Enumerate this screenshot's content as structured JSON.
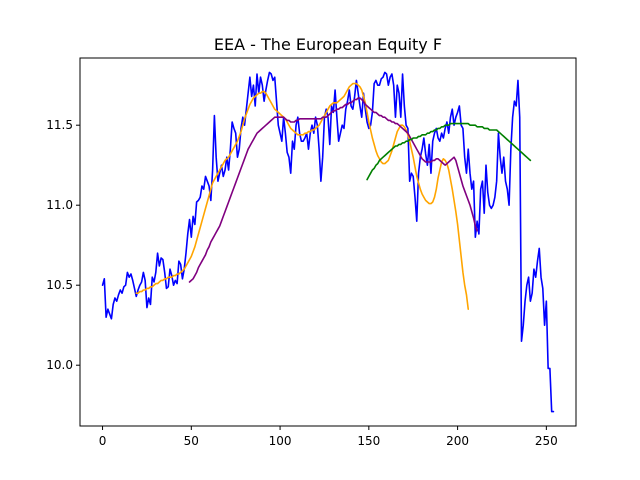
{
  "chart_data": {
    "type": "line",
    "title": "EEA - The European Equity F",
    "xlabel": "",
    "ylabel": "",
    "xlim": [
      -12.7,
      266.7
    ],
    "ylim": [
      9.62,
      11.92
    ],
    "xticks": [
      0,
      50,
      100,
      150,
      200,
      250
    ],
    "yticks": [
      10.0,
      10.5,
      11.0,
      11.5
    ],
    "ytick_labels": [
      "10.0",
      "10.5",
      "11.0",
      "11.5"
    ],
    "grid": false,
    "series": [
      {
        "color": "#0000ff",
        "x_start": 0,
        "values": [
          10.5,
          10.54,
          10.3,
          10.35,
          10.32,
          10.29,
          10.38,
          10.42,
          10.4,
          10.44,
          10.47,
          10.45,
          10.49,
          10.5,
          10.58,
          10.55,
          10.57,
          10.53,
          10.48,
          10.43,
          10.47,
          10.5,
          10.52,
          10.58,
          10.53,
          10.36,
          10.42,
          10.38,
          10.55,
          10.52,
          10.58,
          10.7,
          10.62,
          10.67,
          10.66,
          10.58,
          10.48,
          10.49,
          10.6,
          10.56,
          10.5,
          10.53,
          10.51,
          10.65,
          10.63,
          10.54,
          10.6,
          10.7,
          10.82,
          10.91,
          10.8,
          10.93,
          10.88,
          11.02,
          11.03,
          11.05,
          11.12,
          11.1,
          11.18,
          11.15,
          11.12,
          11.03,
          11.22,
          11.56,
          11.3,
          11.15,
          11.2,
          11.25,
          11.18,
          11.22,
          11.3,
          11.22,
          11.35,
          11.52,
          11.48,
          11.45,
          11.3,
          11.35,
          11.48,
          11.55,
          11.5,
          11.6,
          11.7,
          11.8,
          11.68,
          11.75,
          11.62,
          11.82,
          11.7,
          11.8,
          11.75,
          11.65,
          11.72,
          11.78,
          11.83,
          11.82,
          11.78,
          11.8,
          11.65,
          11.5,
          11.45,
          11.4,
          11.55,
          11.45,
          11.33,
          11.3,
          11.2,
          11.4,
          11.35,
          11.5,
          11.55,
          11.45,
          11.4,
          11.4,
          11.42,
          11.45,
          11.35,
          11.45,
          11.5,
          11.45,
          11.55,
          11.5,
          11.35,
          11.15,
          11.3,
          11.55,
          11.6,
          11.55,
          11.38,
          11.62,
          11.58,
          11.72,
          11.55,
          11.4,
          11.45,
          11.5,
          11.48,
          11.6,
          11.65,
          11.72,
          11.62,
          11.6,
          11.68,
          11.78,
          11.7,
          11.62,
          11.55,
          11.7,
          11.6,
          11.52,
          11.48,
          11.5,
          11.58,
          11.76,
          11.78,
          11.75,
          11.75,
          11.79,
          11.8,
          11.83,
          11.82,
          11.75,
          11.8,
          11.82,
          11.75,
          11.55,
          11.75,
          11.7,
          11.55,
          11.82,
          11.62,
          11.5,
          11.48,
          11.15,
          11.2,
          11.18,
          11.05,
          10.9,
          11.2,
          11.3,
          11.35,
          11.42,
          11.32,
          11.25,
          11.38,
          11.2,
          11.4,
          11.45,
          11.48,
          11.42,
          11.4,
          11.45,
          11.42,
          11.48,
          11.52,
          11.45,
          11.55,
          11.6,
          11.5,
          11.55,
          11.58,
          11.62,
          11.5,
          11.48,
          11.3,
          11.2,
          11.35,
          11.2,
          11.1,
          11.15,
          10.8,
          10.9,
          10.82,
          11.1,
          11.15,
          10.95,
          11.25,
          11.08,
          11.0,
          10.98,
          11.0,
          11.05,
          11.15,
          11.45,
          11.3,
          11.2,
          11.3,
          11.15,
          11.1,
          11.0,
          11.35,
          11.55,
          11.65,
          11.62,
          11.78,
          11.55,
          10.15,
          10.25,
          10.4,
          10.5,
          10.55,
          10.4,
          10.45,
          10.6,
          10.55,
          10.65,
          10.73,
          10.55,
          10.48,
          10.25,
          10.4,
          9.98,
          9.98,
          9.71,
          9.71
        ]
      },
      {
        "color": "#ffa500",
        "x_start": 19,
        "values": [
          10.45,
          10.45,
          10.46,
          10.46,
          10.47,
          10.47,
          10.48,
          10.48,
          10.49,
          10.49,
          10.5,
          10.51,
          10.51,
          10.52,
          10.53,
          10.53,
          10.54,
          10.54,
          10.55,
          10.55,
          10.55,
          10.56,
          10.56,
          10.57,
          10.57,
          10.58,
          10.59,
          10.6,
          10.62,
          10.64,
          10.66,
          10.68,
          10.71,
          10.74,
          10.78,
          10.82,
          10.86,
          10.9,
          10.94,
          10.98,
          11.02,
          11.06,
          11.1,
          11.14,
          11.16,
          11.18,
          11.2,
          11.22,
          11.24,
          11.26,
          11.28,
          11.29,
          11.3,
          11.32,
          11.34,
          11.36,
          11.38,
          11.4,
          11.43,
          11.46,
          11.5,
          11.54,
          11.57,
          11.6,
          11.63,
          11.65,
          11.67,
          11.68,
          11.69,
          11.7,
          11.7,
          11.71,
          11.71,
          11.7,
          11.68,
          11.66,
          11.64,
          11.62,
          11.6,
          11.59,
          11.58,
          11.57,
          11.56,
          11.55,
          11.54,
          11.52,
          11.5,
          11.48,
          11.47,
          11.46,
          11.45,
          11.44,
          11.44,
          11.44,
          11.44,
          11.45,
          11.45,
          11.46,
          11.46,
          11.47,
          11.47,
          11.48,
          11.49,
          11.5,
          11.52,
          11.54,
          11.56,
          11.58,
          11.6,
          11.62,
          11.63,
          11.64,
          11.64,
          11.64,
          11.65,
          11.66,
          11.67,
          11.68,
          11.7,
          11.72,
          11.74,
          11.75,
          11.76,
          11.76,
          11.76,
          11.75,
          11.74,
          11.72,
          11.68,
          11.64,
          11.58,
          11.52,
          11.47,
          11.42,
          11.38,
          11.34,
          11.31,
          11.29,
          11.27,
          11.26,
          11.26,
          11.27,
          11.28,
          11.31,
          11.34,
          11.38,
          11.42,
          11.46,
          11.48,
          11.5,
          11.5,
          11.49,
          11.47,
          11.44,
          11.4,
          11.35,
          11.3,
          11.24,
          11.18,
          11.14,
          11.1,
          11.07,
          11.05,
          11.03,
          11.02,
          11.01,
          11.01,
          11.02,
          11.05,
          11.1,
          11.17,
          11.22,
          11.27,
          11.29,
          11.28,
          11.26,
          11.22,
          11.16,
          11.1,
          11.03,
          10.96,
          10.88,
          10.78,
          10.68,
          10.58,
          10.5,
          10.44,
          10.35
        ]
      },
      {
        "color": "#800080",
        "x_start": 49,
        "values": [
          10.52,
          10.53,
          10.54,
          10.56,
          10.58,
          10.61,
          10.63,
          10.65,
          10.67,
          10.69,
          10.72,
          10.74,
          10.77,
          10.79,
          10.81,
          10.83,
          10.85,
          10.87,
          10.9,
          10.93,
          10.96,
          10.99,
          11.02,
          11.05,
          11.08,
          11.11,
          11.14,
          11.17,
          11.2,
          11.23,
          11.26,
          11.29,
          11.32,
          11.35,
          11.37,
          11.39,
          11.41,
          11.43,
          11.45,
          11.46,
          11.47,
          11.48,
          11.49,
          11.5,
          11.51,
          11.52,
          11.53,
          11.54,
          11.55,
          11.55,
          11.55,
          11.55,
          11.55,
          11.55,
          11.54,
          11.53,
          11.53,
          11.52,
          11.52,
          11.52,
          11.53,
          11.53,
          11.54,
          11.54,
          11.54,
          11.54,
          11.54,
          11.54,
          11.54,
          11.54,
          11.54,
          11.54,
          11.54,
          11.54,
          11.54,
          11.55,
          11.55,
          11.55,
          11.56,
          11.57,
          11.58,
          11.59,
          11.59,
          11.6,
          11.6,
          11.61,
          11.61,
          11.62,
          11.63,
          11.63,
          11.64,
          11.64,
          11.65,
          11.66,
          11.66,
          11.67,
          11.67,
          11.66,
          11.65,
          11.63,
          11.62,
          11.61,
          11.6,
          11.59,
          11.58,
          11.58,
          11.57,
          11.56,
          11.56,
          11.55,
          11.55,
          11.54,
          11.53,
          11.53,
          11.52,
          11.52,
          11.51,
          11.51,
          11.5,
          11.49,
          11.48,
          11.47,
          11.46,
          11.45,
          11.43,
          11.41,
          11.39,
          11.37,
          11.35,
          11.33,
          11.31,
          11.29,
          11.28,
          11.27,
          11.27,
          11.27,
          11.27,
          11.28,
          11.28,
          11.29,
          11.29,
          11.28,
          11.27,
          11.26,
          11.25,
          11.26,
          11.27,
          11.28,
          11.29,
          11.3,
          11.28,
          11.24,
          11.2,
          11.16,
          11.12,
          11.09,
          11.06,
          11.03,
          11.0,
          10.96,
          10.92,
          10.87,
          10.84
        ]
      },
      {
        "color": "#008000",
        "x_start": 149,
        "values": [
          11.16,
          11.18,
          11.2,
          11.22,
          11.23,
          11.25,
          11.26,
          11.28,
          11.29,
          11.3,
          11.31,
          11.32,
          11.33,
          11.34,
          11.35,
          11.36,
          11.37,
          11.37,
          11.38,
          11.38,
          11.39,
          11.39,
          11.4,
          11.4,
          11.41,
          11.41,
          11.42,
          11.42,
          11.42,
          11.43,
          11.43,
          11.44,
          11.44,
          11.44,
          11.45,
          11.45,
          11.46,
          11.46,
          11.47,
          11.47,
          11.48,
          11.48,
          11.49,
          11.49,
          11.5,
          11.5,
          11.5,
          11.51,
          11.51,
          11.51,
          11.51,
          11.51,
          11.51,
          11.51,
          11.51,
          11.51,
          11.51,
          11.51,
          11.5,
          11.5,
          11.5,
          11.5,
          11.49,
          11.49,
          11.49,
          11.49,
          11.48,
          11.48,
          11.48,
          11.47,
          11.47,
          11.47,
          11.47,
          11.47,
          11.46,
          11.45,
          11.44,
          11.43,
          11.42,
          11.41,
          11.4,
          11.39,
          11.38,
          11.37,
          11.36,
          11.35,
          11.34,
          11.33,
          11.32,
          11.31,
          11.3,
          11.29,
          11.28
        ]
      }
    ]
  }
}
